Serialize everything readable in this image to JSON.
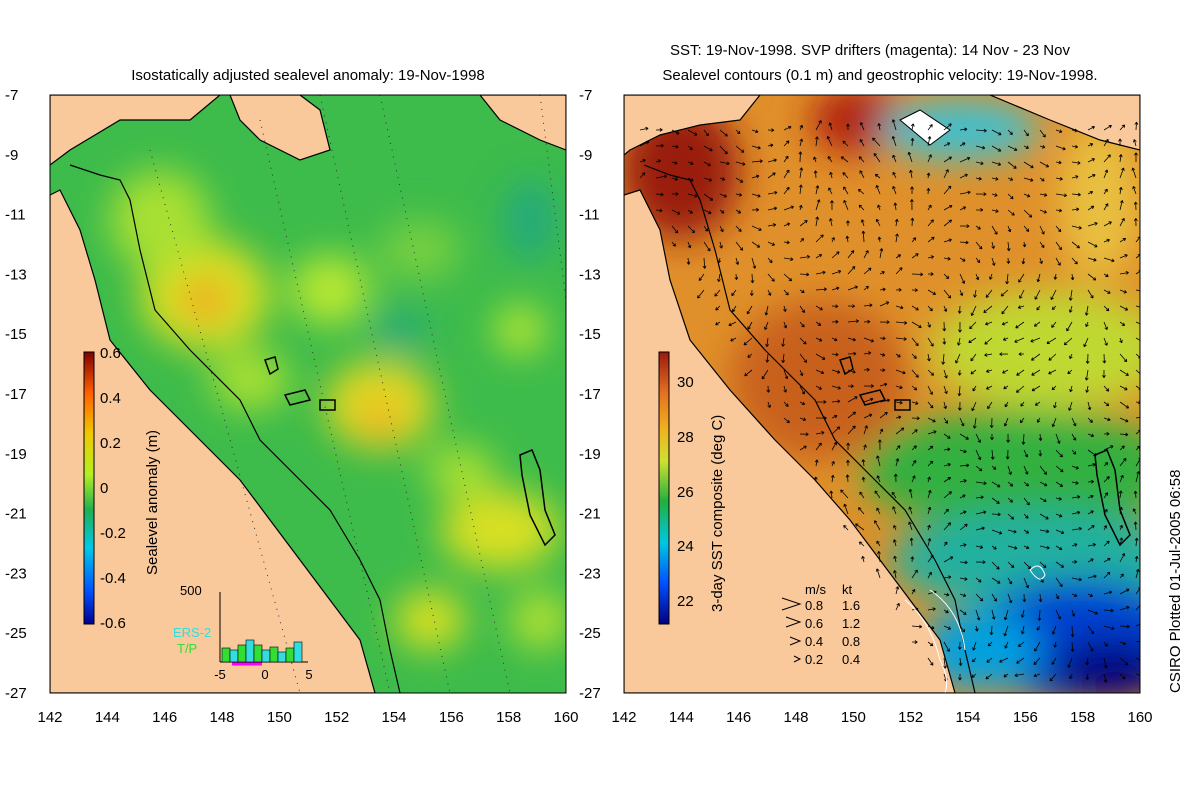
{
  "left_panel": {
    "title": "Isostatically adjusted sealevel anomaly: 19-Nov-1998",
    "colorbar": {
      "label": "Sealevel anomaly (m)",
      "ticks": [
        "0.6",
        "0.4",
        "0.2",
        "0",
        "-0.2",
        "-0.4",
        "-0.6"
      ],
      "range": [
        -0.6,
        0.6
      ]
    },
    "histogram": {
      "ymax_label": "500",
      "legend": [
        "ERS-2",
        "T/P"
      ],
      "xticks": [
        "-5",
        "0",
        "5"
      ],
      "series_colors": {
        "ERS-2": "#33dddd",
        "T/P": "#33dd33"
      }
    }
  },
  "right_panel": {
    "title_line1": "SST: 19-Nov-1998. SVP drifters (magenta): 14 Nov - 23 Nov",
    "title_line2": "Sealevel contours (0.1 m) and geostrophic velocity: 19-Nov-1998.",
    "colorbar": {
      "label": "3-day SST composite (deg C)",
      "ticks": [
        "30",
        "28",
        "26",
        "24",
        "22"
      ],
      "range": [
        21,
        31
      ]
    },
    "velocity_legend": {
      "header_ms": "m/s",
      "header_kt": "kt",
      "rows": [
        {
          "ms": "0.8",
          "kt": "1.6"
        },
        {
          "ms": "0.6",
          "kt": "1.2"
        },
        {
          "ms": "0.4",
          "kt": "0.8"
        },
        {
          "ms": "0.2",
          "kt": "0.4"
        }
      ]
    }
  },
  "axes": {
    "lat_ticks": [
      "-7",
      "-9",
      "-11",
      "-13",
      "-15",
      "-17",
      "-19",
      "-21",
      "-23",
      "-25",
      "-27"
    ],
    "lon_ticks": [
      "142",
      "144",
      "146",
      "148",
      "150",
      "152",
      "154",
      "156",
      "158",
      "160"
    ],
    "lat_range": [
      -27,
      -7
    ],
    "lon_range": [
      142,
      160
    ]
  },
  "credit": "CSIRO Plotted 01-Jul-2005 06:58",
  "colors": {
    "land": "#f9c89b",
    "sea_base": "#3dbb4b",
    "warm_sst": "#e48a2a"
  }
}
